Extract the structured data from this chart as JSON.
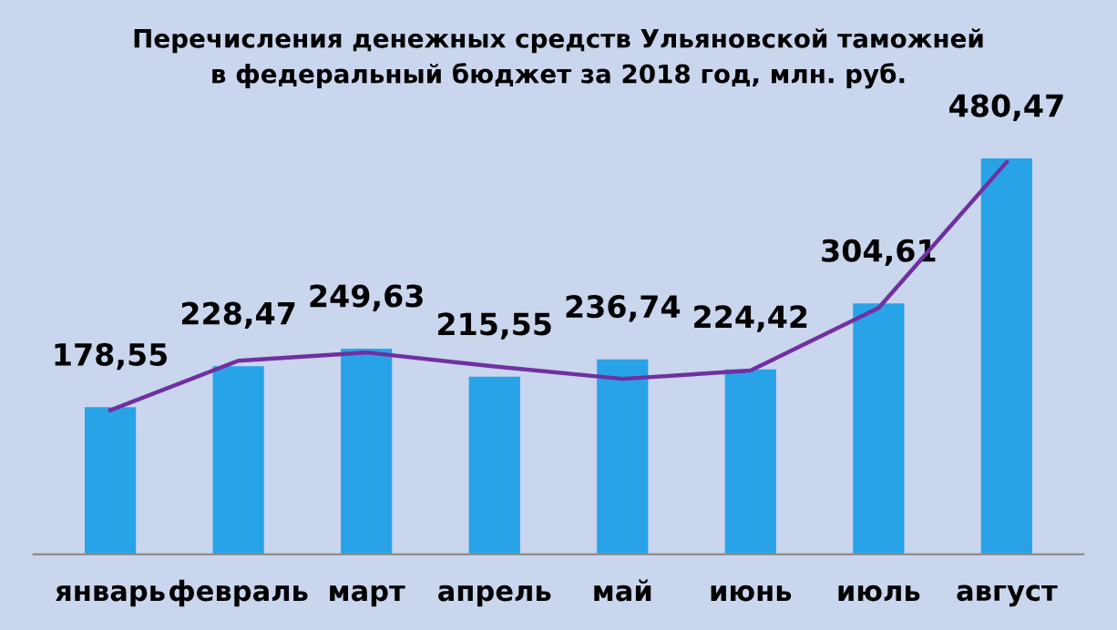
{
  "chart_data": {
    "type": "bar",
    "title": "Перечисления денежных средств Ульяновской таможней\nв федеральный бюджет за 2018 год, млн. руб.",
    "categories": [
      "январь",
      "февраль",
      "март",
      "апрель",
      "май",
      "июнь",
      "июль",
      "август"
    ],
    "series": [
      {
        "color": "#29a3e8",
        "values": [
          178.55,
          228.47,
          249.63,
          215.55,
          236.74,
          224.42,
          304.61,
          480.47
        ],
        "value_labels": [
          "178,55",
          "228,47",
          "249,63",
          "215,55",
          "236,74",
          "224,42",
          "304,61",
          "480,47"
        ]
      },
      {
        "type": "line",
        "color": "#7030a0",
        "values": [
          175,
          235,
          245,
          228,
          213,
          223,
          299,
          476
        ]
      }
    ],
    "grid": false
  }
}
